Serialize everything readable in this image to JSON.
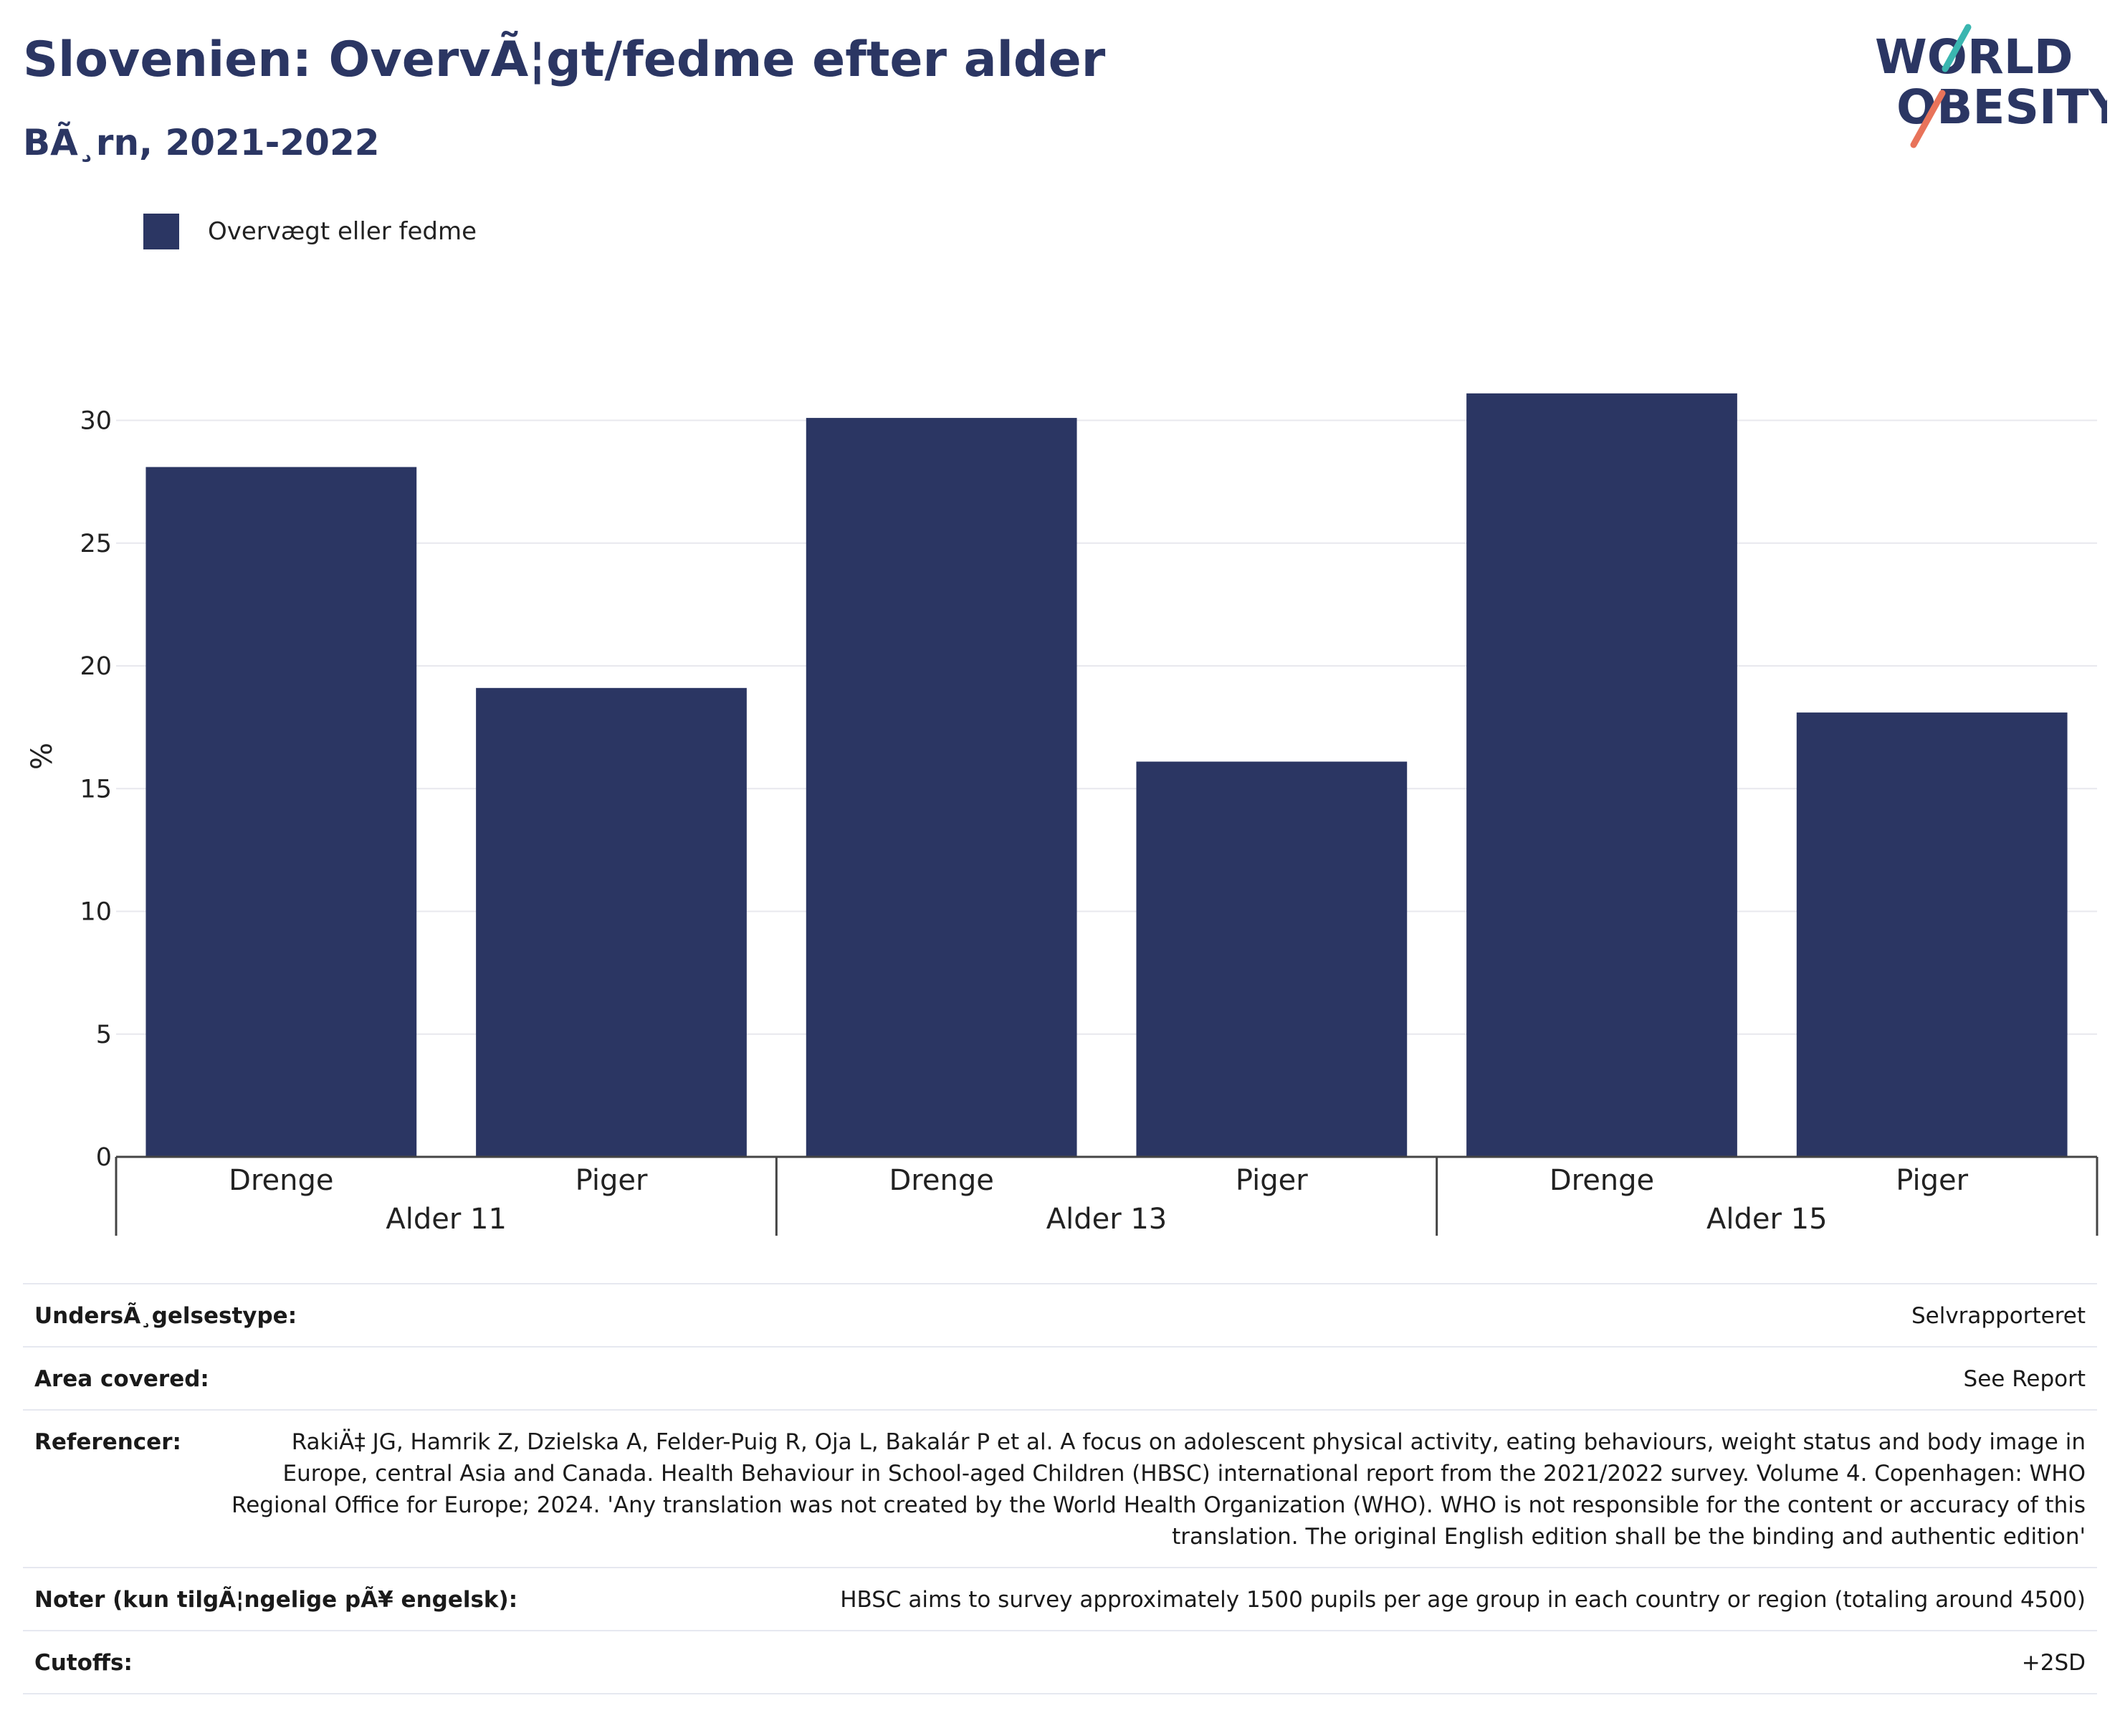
{
  "header": {
    "title": "Slovenien: OvervÃ¦gt/fedme efter alder",
    "subtitle": "BÃ¸rn, 2021-2022"
  },
  "logo": {
    "line1": "WORLD",
    "line2": "OBESITY"
  },
  "colors": {
    "bar": "#2b3663",
    "title": "#2b3663",
    "logo_teal": "#3ab6b0",
    "logo_coral": "#e8735a",
    "grid": "#e8e8ee"
  },
  "chart_data": {
    "type": "bar",
    "ylabel": "%",
    "ylim": [
      0,
      32
    ],
    "yticks": [
      0,
      5,
      10,
      15,
      20,
      25,
      30
    ],
    "grid": true,
    "legend_position": "top-left",
    "categories": [
      "Drenge",
      "Piger",
      "Drenge",
      "Piger",
      "Drenge",
      "Piger"
    ],
    "groups": [
      "Alder 11",
      "Alder 13",
      "Alder 15"
    ],
    "series": [
      {
        "name": "Overvægt eller fedme",
        "values": [
          28.1,
          19.1,
          30.1,
          16.1,
          31.1,
          18.1
        ]
      }
    ]
  },
  "info_table": [
    {
      "key": "UndersÃ¸gelsestype:",
      "value": "Selvrapporteret"
    },
    {
      "key": "Area covered:",
      "value": "See Report"
    },
    {
      "key": "Referencer:",
      "value": "RakiÄ‡ JG, Hamrik Z, Dzielska A, Felder-Puig R, Oja L, Bakalár P et al. A focus on adolescent physical activity, eating behaviours, weight status and body image in Europe, central Asia and Canada. Health Behaviour in School-aged Children (HBSC) international report from the 2021/2022 survey. Volume 4. Copenhagen: WHO Regional Office for Europe; 2024. 'Any translation was not created by the World Health Organization (WHO). WHO is not responsible for the content or accuracy of this translation. The original English edition shall be the binding and authentic edition'"
    },
    {
      "key": "Noter (kun tilgÃ¦ngelige pÃ¥ engelsk):",
      "value": "HBSC aims to survey approximately 1500 pupils per age group in each country or region (totaling around 4500)"
    },
    {
      "key": "Cutoffs:",
      "value": "+2SD"
    }
  ]
}
